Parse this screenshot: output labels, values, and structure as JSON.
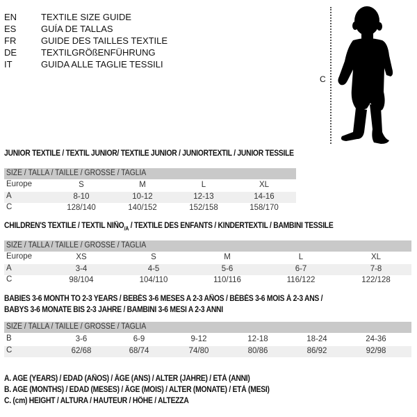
{
  "languages": [
    {
      "code": "EN",
      "text": "TEXTILE SIZE GUIDE"
    },
    {
      "code": "ES",
      "text": "GUÍA DE TALLAS"
    },
    {
      "code": "FR",
      "text": "GUIDE DES TAILLES TEXTILE"
    },
    {
      "code": "DE",
      "text": "TEXTILGRÖßENFÜHRUNG"
    },
    {
      "code": "IT",
      "text": "GUIDA ALLE TAGLIE TESSILI"
    }
  ],
  "figure": {
    "measure_label": "C",
    "icon": "child-silhouette"
  },
  "size_header": "SIZE / TALLA / TAILLE / GRÖSSE / TAGLIA",
  "junior": {
    "title": "JUNIOR TEXTILE / TEXTIL JUNIOR/ TEXTILE JUNIOR / JUNIORTEXTIL / JUNIOR TESSILE",
    "rows": [
      {
        "label": "Europe",
        "values": [
          "S",
          "M",
          "L",
          "XL"
        ]
      },
      {
        "label": "A",
        "values": [
          "8-10",
          "10-12",
          "12-13",
          "14-16"
        ]
      },
      {
        "label": "C",
        "values": [
          "128/140",
          "140/152",
          "152/158",
          "158/170"
        ]
      }
    ]
  },
  "children": {
    "title_a": "CHILDREN'S TEXTILE / TEXTIL NIÑO",
    "title_sub": "/A",
    "title_b": " / TEXTILE DES ENFANTS / KINDERTEXTIL / BAMBINI TESSILE",
    "rows": [
      {
        "label": "Europe",
        "values": [
          "XS",
          "S",
          "M",
          "L",
          "XL"
        ]
      },
      {
        "label": "A",
        "values": [
          "3-4",
          "4-5",
          "5-6",
          "6-7",
          "7-8"
        ]
      },
      {
        "label": "C",
        "values": [
          "98/104",
          "104/110",
          "110/116",
          "116/122",
          "122/128"
        ]
      }
    ]
  },
  "babies": {
    "title_line1": "BABIES 3-6 MONTH TO 2-3 YEARS / BEBÉS 3-6 MESES A 2-3 AÑOS / BÉBÉS 3-6 MOIS À 2-3 ANS /",
    "title_line2": "BABYS 3-6 MONATE BIS 2-3 JAHRE / BAMBINI 3-6 MESI A 2-3 ANNI",
    "rows": [
      {
        "label": "B",
        "values": [
          "3-6",
          "6-9",
          "9-12",
          "12-18",
          "18-24",
          "24-36"
        ]
      },
      {
        "label": "C",
        "values": [
          "62/68",
          "68/74",
          "74/80",
          "80/86",
          "86/92",
          "92/98"
        ]
      }
    ]
  },
  "legend": [
    "A. AGE (YEARS) / EDAD (AÑOS) / ÂGE (ANS) / ALTER (JAHRE) / ETÀ (ANNI)",
    "B. AGE (MONTHS) / EDAD (MESES) / ÂGE (MOIS) / ALTER (MONATE) / ETÀ (MESI)",
    "C. (cm) HEIGHT / ALTURA / HAUTEUR / HÖHE / ALTEZZA"
  ]
}
